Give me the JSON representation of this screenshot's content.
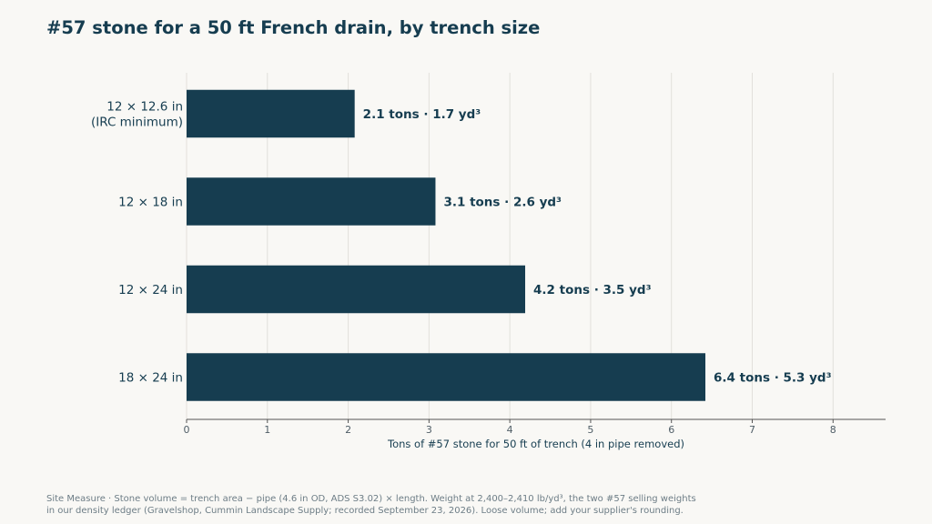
{
  "title": "#57 stone for a 50 ft French drain, by trench size",
  "chart_data": {
    "type": "bar",
    "orientation": "horizontal",
    "categories": [
      [
        "12 × 12.6 in",
        "(IRC minimum)"
      ],
      [
        "12 × 18 in"
      ],
      [
        "12 × 24 in"
      ],
      [
        "18 × 24 in"
      ]
    ],
    "values": [
      2.08,
      3.08,
      4.19,
      6.42
    ],
    "data_labels": [
      "2.1 tons  ·  1.7 yd³",
      "3.1 tons  ·  2.6 yd³",
      "4.2 tons  ·  3.5 yd³",
      "6.4 tons  ·  5.3 yd³"
    ],
    "xlabel": "Tons of #57 stone for 50 ft of trench (4 in pipe removed)",
    "ylabel": "",
    "xlim": [
      0,
      8.65
    ],
    "xticks": [
      0,
      1,
      2,
      3,
      4,
      5,
      6,
      7,
      8
    ],
    "grid": "vertical",
    "bar_color": "#163d50",
    "grid_color": "#e2e0db",
    "axis_color": "#555555"
  },
  "footer": {
    "line1": "Site Measure · Stone volume = trench area − pipe (4.6 in OD, ADS S3.02) × length. Weight at 2,400–2,410 lb/yd³, the two #57 selling weights",
    "line2": "in our density ledger (Gravelshop, Cummin Landscape Supply; recorded September 23, 2026). Loose volume; add your supplier's rounding."
  }
}
